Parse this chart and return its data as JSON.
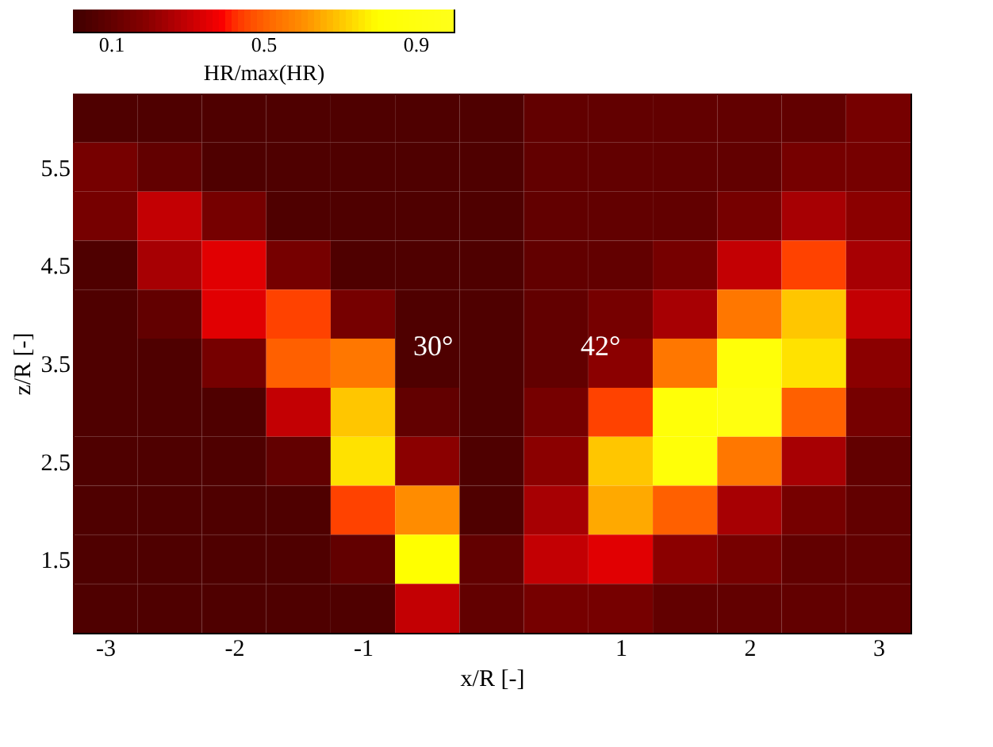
{
  "chart_data": {
    "type": "heatmap",
    "xlabel": "x/R [-]",
    "ylabel": "z/R [-]",
    "clabel": "HR/max(HR)",
    "x": [
      -3.0,
      -2.5,
      -2.0,
      -1.5,
      -1.0,
      -0.5,
      0.0,
      0.5,
      1.0,
      1.5,
      2.0,
      2.5,
      3.0
    ],
    "y": [
      6.0,
      5.5,
      5.0,
      4.5,
      4.0,
      3.5,
      3.0,
      2.5,
      2.0,
      1.5,
      1.0
    ],
    "cells": [
      [
        0.05,
        0.05,
        0.05,
        0.05,
        0.05,
        0.05,
        0.05,
        0.1,
        0.1,
        0.1,
        0.1,
        0.1,
        0.15
      ],
      [
        0.15,
        0.1,
        0.05,
        0.05,
        0.05,
        0.05,
        0.05,
        0.1,
        0.1,
        0.1,
        0.1,
        0.15,
        0.15
      ],
      [
        0.15,
        0.3,
        0.15,
        0.05,
        0.05,
        0.05,
        0.05,
        0.1,
        0.1,
        0.1,
        0.15,
        0.25,
        0.2
      ],
      [
        0.05,
        0.25,
        0.35,
        0.15,
        0.05,
        0.05,
        0.05,
        0.1,
        0.1,
        0.15,
        0.3,
        0.45,
        0.25
      ],
      [
        0.05,
        0.1,
        0.35,
        0.45,
        0.15,
        0.05,
        0.05,
        0.1,
        0.15,
        0.25,
        0.55,
        0.7,
        0.3
      ],
      [
        0.05,
        0.05,
        0.15,
        0.5,
        0.55,
        0.05,
        0.05,
        0.1,
        0.2,
        0.55,
        0.85,
        0.75,
        0.2
      ],
      [
        0.05,
        0.05,
        0.05,
        0.3,
        0.7,
        0.1,
        0.05,
        0.15,
        0.45,
        0.85,
        0.9,
        0.5,
        0.15
      ],
      [
        0.05,
        0.05,
        0.05,
        0.1,
        0.75,
        0.2,
        0.05,
        0.2,
        0.7,
        0.85,
        0.55,
        0.25,
        0.1
      ],
      [
        0.05,
        0.05,
        0.05,
        0.05,
        0.45,
        0.6,
        0.05,
        0.25,
        0.65,
        0.5,
        0.25,
        0.15,
        0.1
      ],
      [
        0.05,
        0.05,
        0.05,
        0.05,
        0.1,
        0.8,
        0.1,
        0.3,
        0.35,
        0.2,
        0.15,
        0.1,
        0.1
      ],
      [
        0.05,
        0.05,
        0.05,
        0.05,
        0.05,
        0.3,
        0.1,
        0.15,
        0.15,
        0.1,
        0.1,
        0.1,
        0.1
      ]
    ],
    "xlim": [
      -3.25,
      3.25
    ],
    "xticks": [
      -3,
      -2,
      -1,
      1,
      2,
      3
    ],
    "ylim": [
      0.75,
      6.25
    ],
    "yticks": [
      1.5,
      2.5,
      3.5,
      4.5,
      5.5
    ],
    "clim": [
      0,
      1
    ],
    "cticks": [
      0.1,
      0.5,
      0.9
    ],
    "colors": [
      "#000000",
      "#8b0000",
      "#ff0000",
      "#ff8c00",
      "#ffff00",
      "#ffffff"
    ],
    "annotations": [
      "30°",
      "42°"
    ]
  }
}
